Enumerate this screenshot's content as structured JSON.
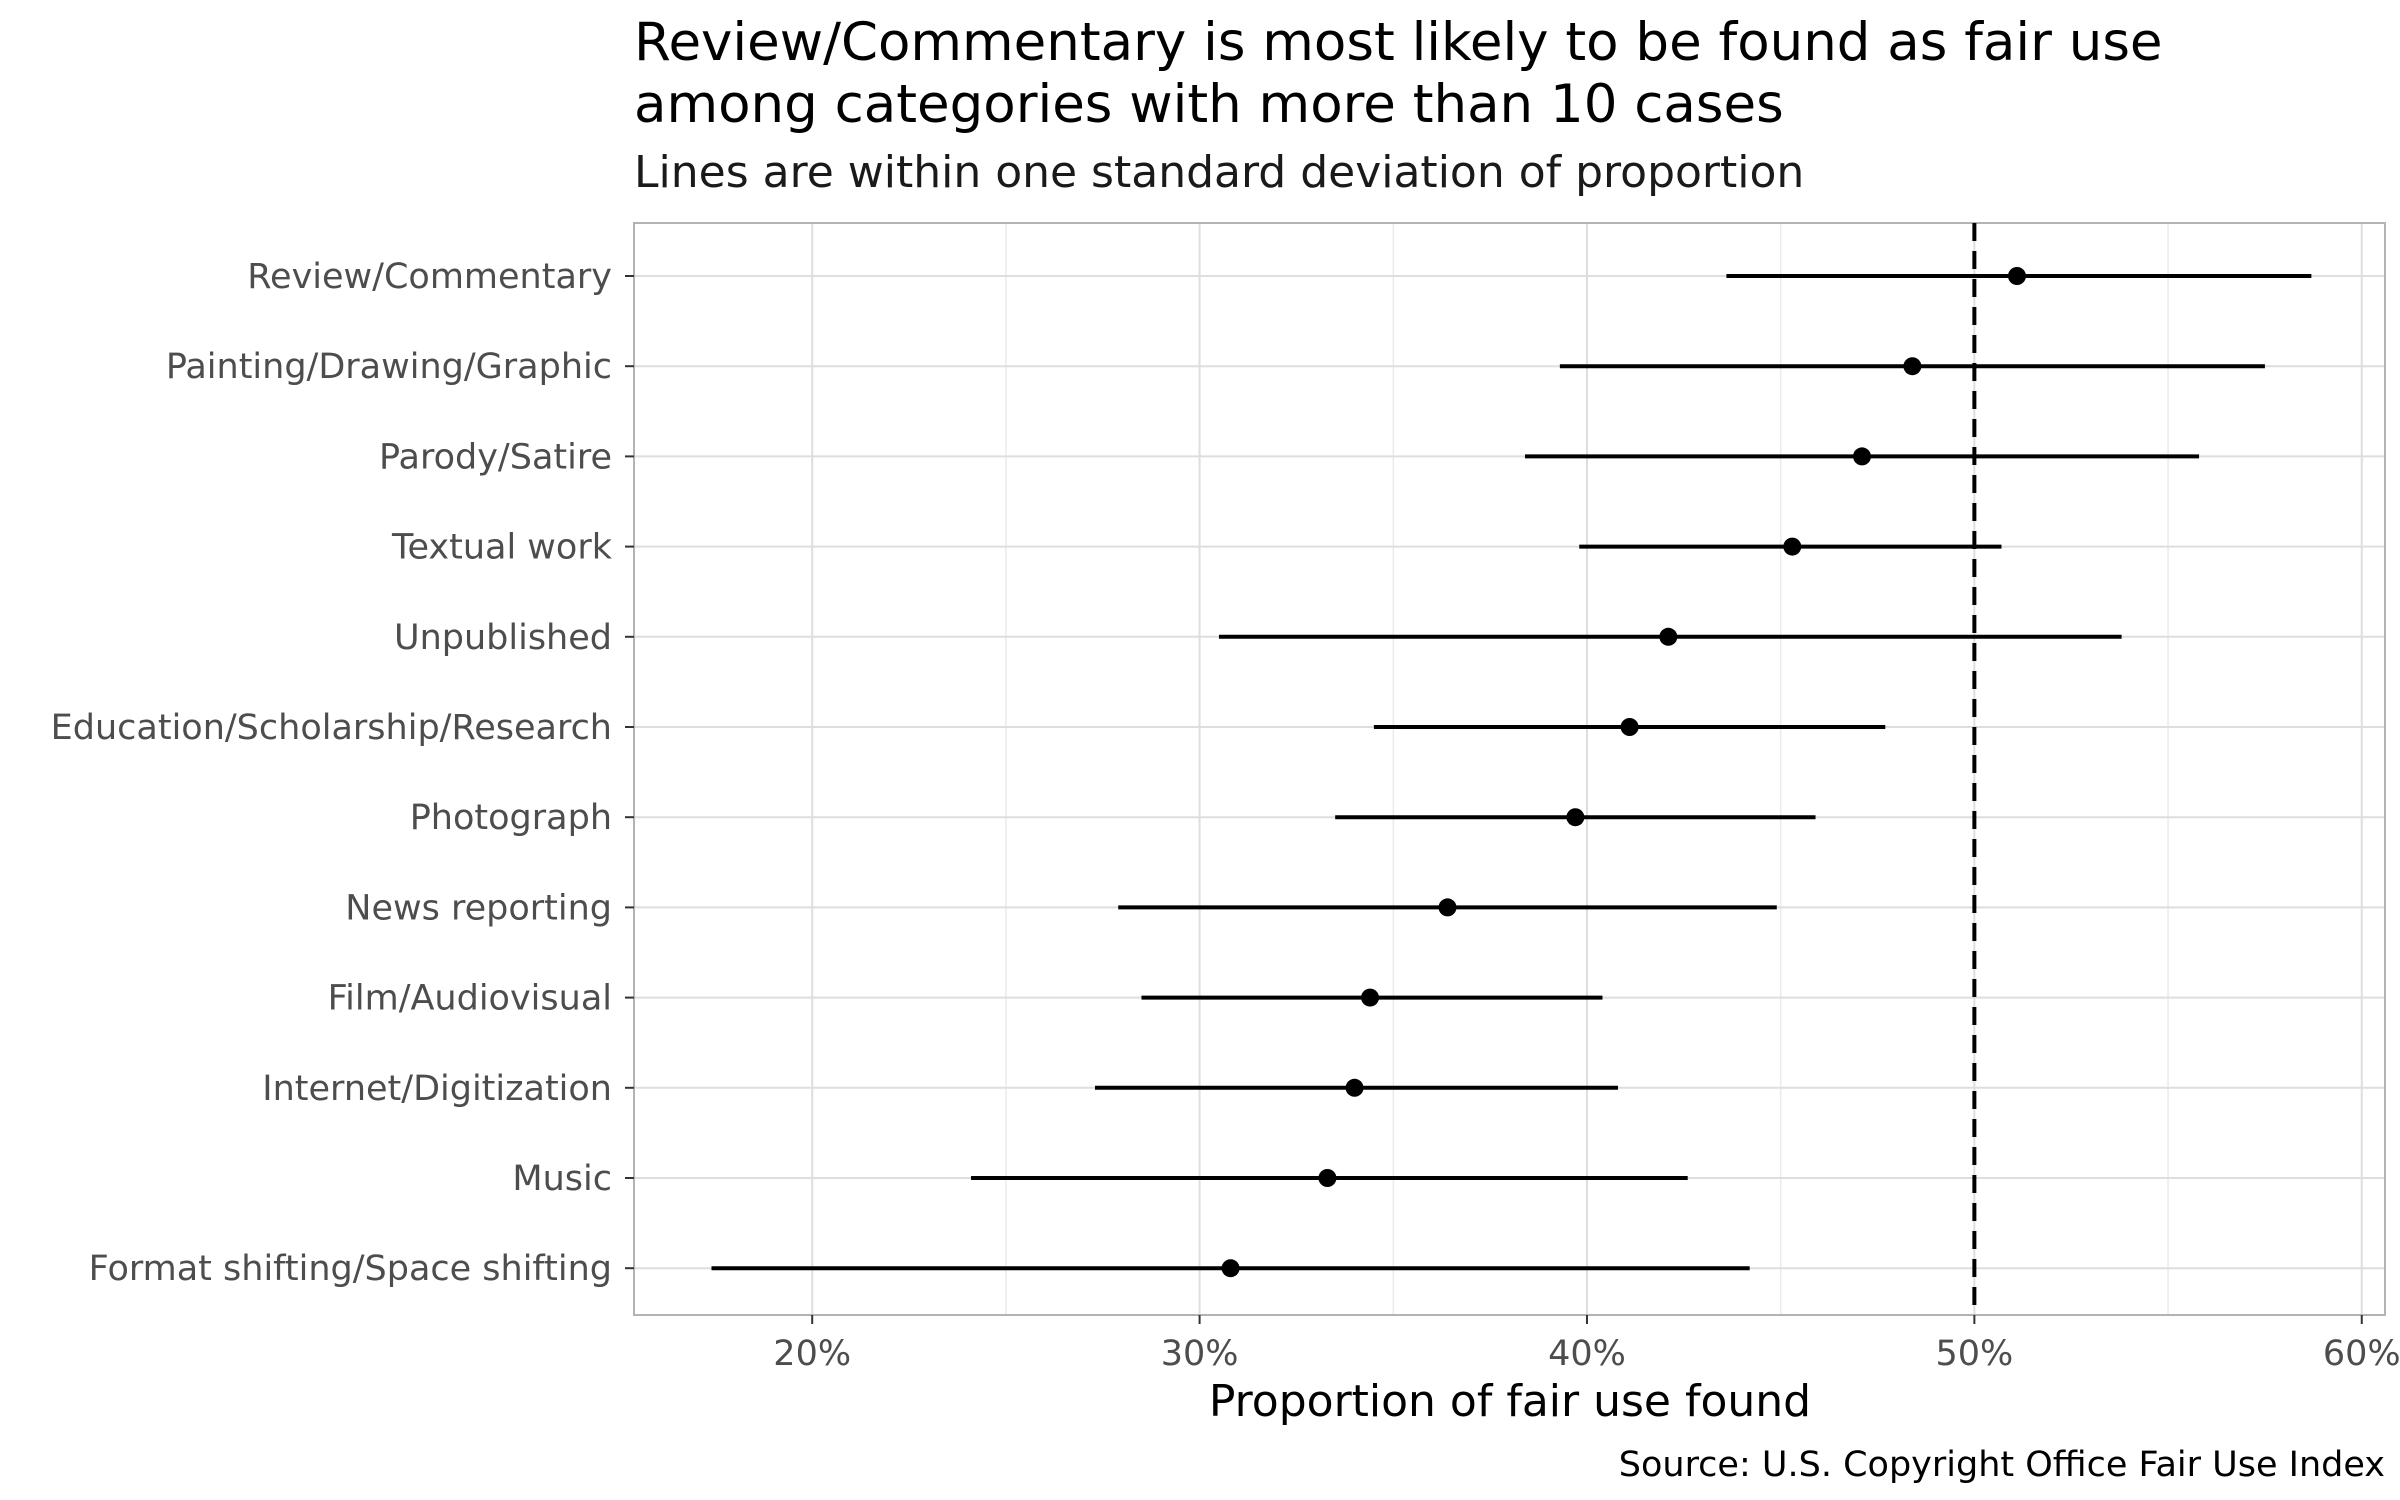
{
  "chart_data": {
    "type": "dot-errorbar",
    "title": "Review/Commentary is most likely to be found as fair use among categories with more than 10 cases",
    "title_lines": [
      "Review/Commentary is most likely to be found as fair use",
      "among categories with more than 10 cases"
    ],
    "subtitle": "Lines are within one standard deviation of proportion",
    "xlabel": "Proportion of fair use found",
    "caption": "Source: U.S. Copyright Office Fair Use Index",
    "x_ticks": [
      0.2,
      0.3,
      0.4,
      0.5,
      0.6
    ],
    "x_tick_labels": [
      "20%",
      "30%",
      "40%",
      "50%",
      "60%"
    ],
    "xlim": [
      0.154,
      0.606
    ],
    "reference_line": 0.5,
    "grid": true,
    "categories": [
      "Review/Commentary",
      "Painting/Drawing/Graphic",
      "Parody/Satire",
      "Textual work",
      "Unpublished",
      "Education/Scholarship/Research",
      "Photograph",
      "News reporting",
      "Film/Audiovisual",
      "Internet/Digitization",
      "Music",
      "Format shifting/Space shifting"
    ],
    "values": [
      0.511,
      0.484,
      0.471,
      0.453,
      0.421,
      0.411,
      0.397,
      0.364,
      0.344,
      0.34,
      0.333,
      0.308
    ],
    "lower": [
      0.436,
      0.393,
      0.384,
      0.398,
      0.305,
      0.345,
      0.335,
      0.279,
      0.285,
      0.273,
      0.241,
      0.174
    ],
    "upper": [
      0.587,
      0.575,
      0.558,
      0.507,
      0.538,
      0.477,
      0.459,
      0.449,
      0.404,
      0.408,
      0.426,
      0.442
    ]
  }
}
